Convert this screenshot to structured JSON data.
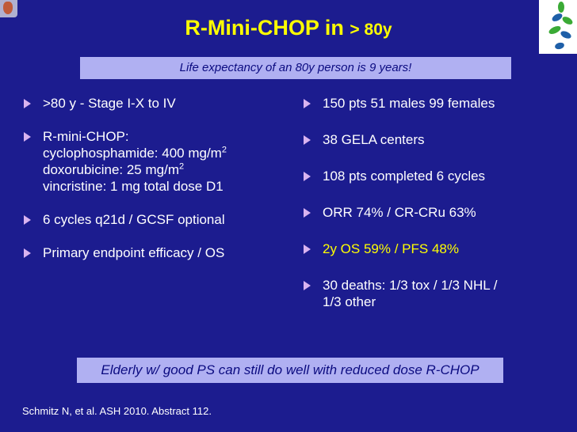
{
  "title": {
    "main": "R-Mini-CHOP in",
    "suffix": "> 80y"
  },
  "banner_top": "Life expectancy of an 80y person is 9 years!",
  "left": {
    "b1": ">80 y - Stage I-X to IV",
    "b2_head": "R-mini-CHOP:",
    "b2_l1": "cyclophosphamide: 400 mg/m",
    "b2_l2": "doxorubicine: 25 mg/m",
    "b2_sup": "2",
    "b2_l3": "vincristine: 1 mg total dose D1",
    "b3": "6 cycles q21d / GCSF optional",
    "b4": "Primary endpoint efficacy / OS"
  },
  "right": {
    "b1": "150 pts 51 males 99 females",
    "b2": "38 GELA centers",
    "b3": "108 pts completed 6 cycles",
    "b4": "ORR 74% / CR-CRu 63%",
    "b5": "2y OS 59% / PFS 48%",
    "b6_l1": "30 deaths: 1/3 tox / 1/3 NHL /",
    "b6_l2": "1/3 other"
  },
  "banner_bottom": "Elderly w/ good PS can still do well with reduced dose R-CHOP",
  "citation": "Schmitz N, et al. ASH 2010. Abstract 112.",
  "colors": {
    "background": "#1c1c8f",
    "title": "#ffff00",
    "banner": "#b0b0f2",
    "bullet": "#d9b3f0",
    "logo_green": "#3aaa35",
    "logo_blue": "#1e5fa8"
  },
  "icons": {
    "top_left": "institution-logo",
    "top_right": "leaf-logo"
  }
}
